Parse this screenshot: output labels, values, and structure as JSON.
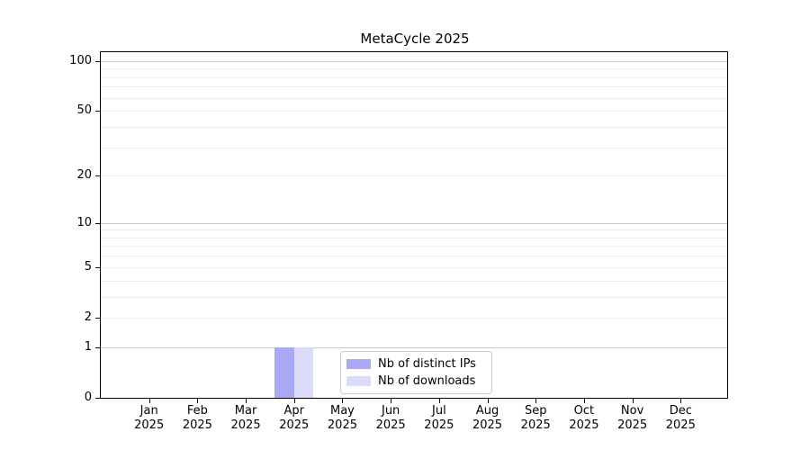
{
  "chart_data": {
    "type": "bar",
    "title": "MetaCycle 2025",
    "categories": [
      "Jan 2025",
      "Feb 2025",
      "Mar 2025",
      "Apr 2025",
      "May 2025",
      "Jun 2025",
      "Jul 2025",
      "Aug 2025",
      "Sep 2025",
      "Oct 2025",
      "Nov 2025",
      "Dec 2025"
    ],
    "series": [
      {
        "name": "Nb of distinct IPs",
        "color": "#a9a9f5",
        "values": [
          0,
          0,
          0,
          1,
          0,
          0,
          0,
          0,
          0,
          0,
          0,
          0
        ]
      },
      {
        "name": "Nb of downloads",
        "color": "#dcdcf8",
        "values": [
          0,
          0,
          0,
          1,
          0,
          0,
          0,
          0,
          0,
          0,
          0,
          0
        ]
      }
    ],
    "xlabel": "",
    "ylabel": "",
    "yscale": "log1p",
    "ylim": [
      0,
      113
    ],
    "yticks": [
      0,
      1,
      2,
      5,
      10,
      20,
      50,
      100
    ],
    "major_gridlines": [
      1,
      10,
      100
    ],
    "minor_gridlines": [
      2,
      3,
      4,
      5,
      6,
      7,
      8,
      9,
      20,
      30,
      40,
      50,
      60,
      70,
      80,
      90
    ],
    "grid": true,
    "legend_position": "lower center"
  },
  "colors": {
    "bar_distinct_ips": "#a9a9f5",
    "bar_downloads": "#dcdcf8",
    "axis": "#000000",
    "major_grid": "#c9c9c9",
    "minor_grid": "#ececec",
    "legend_border": "#cccccc",
    "text": "#000000"
  }
}
